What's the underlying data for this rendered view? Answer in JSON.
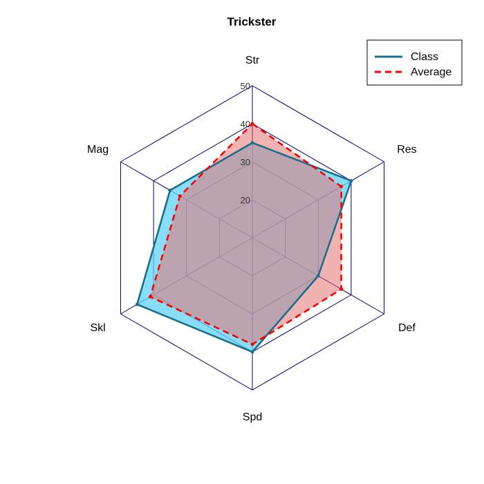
{
  "chart_data": {
    "type": "radar",
    "title": "Trickster",
    "axes": [
      "Str",
      "Res",
      "Def",
      "Spd",
      "Skl",
      "Mag"
    ],
    "rlim": [
      10,
      50
    ],
    "ticks": [
      20,
      30,
      40,
      50
    ],
    "tick_labels": [
      "20",
      "30",
      "40",
      "50"
    ],
    "grid": true,
    "legend_position": "top-right",
    "series": [
      {
        "name": "Class",
        "values": [
          35,
          40,
          30,
          40,
          45,
          35
        ],
        "color": "#1a6f8a",
        "fill": "#5fd3f5",
        "dash": "solid"
      },
      {
        "name": "Average",
        "values": [
          40,
          37,
          37,
          38,
          41,
          32
        ],
        "color": "#ff0000",
        "fill": "#e57373",
        "dash": "dashed"
      }
    ]
  }
}
